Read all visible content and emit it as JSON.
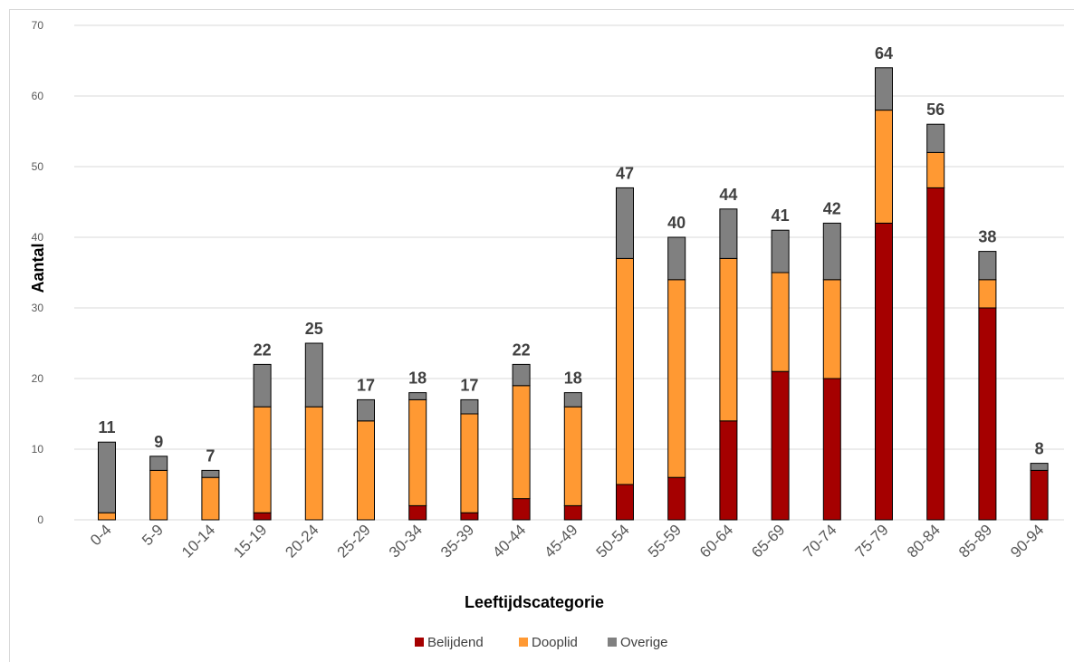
{
  "chart_data": {
    "type": "bar",
    "stacked": true,
    "title": "",
    "xlabel": "Leeftijdscategorie",
    "ylabel": "Aantal",
    "ylim": [
      0,
      70
    ],
    "yticks": [
      0,
      10,
      20,
      30,
      40,
      50,
      60,
      70
    ],
    "grid": true,
    "legend_position": "bottom",
    "categories": [
      "0-4",
      "5-9",
      "10-14",
      "15-19",
      "20-24",
      "25-29",
      "30-34",
      "35-39",
      "40-44",
      "45-49",
      "50-54",
      "55-59",
      "60-64",
      "65-69",
      "70-74",
      "75-79",
      "80-84",
      "85-89",
      "90-94"
    ],
    "series": [
      {
        "name": "Belijdend",
        "color": "#a50000",
        "values": [
          0,
          0,
          0,
          1,
          0,
          0,
          2,
          1,
          3,
          2,
          5,
          6,
          14,
          21,
          20,
          42,
          47,
          30,
          7
        ]
      },
      {
        "name": "Dooplid",
        "color": "#ff9933",
        "values": [
          1,
          7,
          6,
          15,
          16,
          14,
          15,
          14,
          16,
          14,
          32,
          28,
          23,
          14,
          14,
          16,
          5,
          4,
          0
        ]
      },
      {
        "name": "Overige",
        "color": "#808080",
        "values": [
          10,
          2,
          1,
          6,
          9,
          3,
          1,
          2,
          3,
          2,
          10,
          6,
          7,
          6,
          8,
          6,
          4,
          4,
          1
        ]
      }
    ],
    "totals": [
      11,
      9,
      7,
      22,
      25,
      17,
      18,
      17,
      22,
      18,
      47,
      40,
      44,
      41,
      42,
      64,
      56,
      38,
      8
    ]
  }
}
